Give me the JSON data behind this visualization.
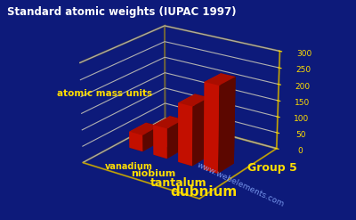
{
  "title": "Standard atomic weights (IUPAC 1997)",
  "ylabel": "atomic mass units",
  "xlabel": "Group 5",
  "watermark": "www.webelements.com",
  "categories": [
    "vanadium",
    "niobium",
    "tantalum",
    "dubnium"
  ],
  "values": [
    50.94,
    92.91,
    180.95,
    262.0
  ],
  "ylim": [
    0,
    300
  ],
  "yticks": [
    0,
    50,
    100,
    150,
    200,
    250,
    300
  ],
  "background_color": "#0d1a7a",
  "bar_color": "#dd1100",
  "grid_color": "#ccaa00",
  "title_color": "#ffffff",
  "label_color": "#ffdd00",
  "watermark_color": "#88aaff",
  "bar_width": 0.55
}
